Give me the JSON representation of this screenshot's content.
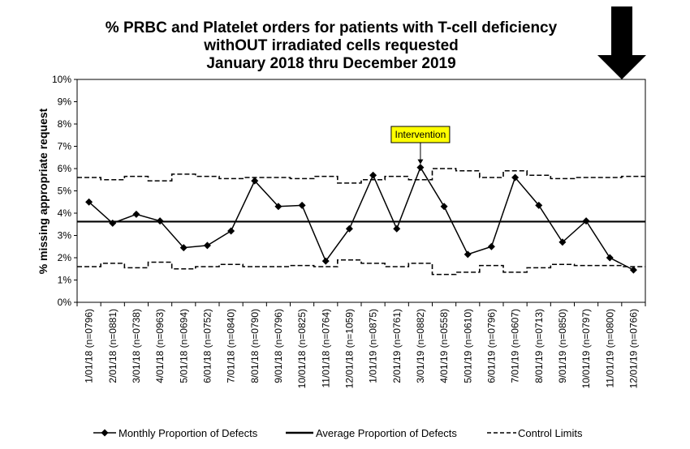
{
  "chart_data": {
    "type": "line",
    "title": [
      "% PRBC and Platelet orders for patients with T-cell deficiency",
      "withOUT irradiated cells requested",
      "January 2018 thru December 2019"
    ],
    "ylabel": "% missing appropriate request",
    "ylim": [
      0,
      10
    ],
    "yticks": [
      "0%",
      "1%",
      "2%",
      "3%",
      "4%",
      "5%",
      "6%",
      "7%",
      "8%",
      "9%",
      "10%"
    ],
    "categories": [
      "1/01/18 (n=0796)",
      "2/01/18 (n=0881)",
      "3/01/18 (n=0738)",
      "4/01/18 (n=0963)",
      "5/01/18 (n=0694)",
      "6/01/18 (n=0752)",
      "7/01/18 (n=0840)",
      "8/01/18 (n=0790)",
      "9/01/18 (n=0796)",
      "10/01/18 (n=0825)",
      "11/01/18 (n=0764)",
      "12/01/18 (n=1059)",
      "1/01/19 (n=0875)",
      "2/01/19 (n=0761)",
      "3/01/19 (n=0882)",
      "4/01/19 (n=0558)",
      "5/01/19 (n=0610)",
      "6/01/19 (n=0796)",
      "7/01/19 (n=0607)",
      "8/01/19 (n=0713)",
      "9/01/19 (n=0850)",
      "10/01/19 (n=0797)",
      "11/01/19 (n=0800)",
      "12/01/19 (n=0766)"
    ],
    "series": [
      {
        "name": "Monthly Proportion of Defects",
        "style": "line-diamond",
        "color": "#000000",
        "values": [
          4.5,
          3.55,
          3.95,
          3.65,
          2.45,
          2.55,
          3.2,
          5.45,
          4.3,
          4.35,
          1.85,
          3.3,
          5.7,
          3.3,
          6.05,
          4.3,
          2.15,
          2.5,
          5.6,
          4.35,
          2.7,
          3.65,
          2.0,
          1.45
        ]
      },
      {
        "name": "Average Proportion of Defects",
        "style": "solid-thick",
        "color": "#000000",
        "value": 3.62
      },
      {
        "name": "Control Limits",
        "style": "dashed-step",
        "color": "#000000",
        "upper": [
          5.6,
          5.5,
          5.65,
          5.45,
          5.75,
          5.65,
          5.55,
          5.6,
          5.6,
          5.55,
          5.65,
          5.35,
          5.5,
          5.65,
          5.5,
          6.0,
          5.9,
          5.6,
          5.9,
          5.7,
          5.55,
          5.6,
          5.6,
          5.65
        ],
        "lower": [
          1.6,
          1.75,
          1.55,
          1.8,
          1.5,
          1.6,
          1.7,
          1.6,
          1.6,
          1.65,
          1.6,
          1.9,
          1.75,
          1.6,
          1.75,
          1.25,
          1.35,
          1.65,
          1.35,
          1.55,
          1.7,
          1.65,
          1.65,
          1.6
        ]
      }
    ],
    "annotations": [
      {
        "text": "Intervention",
        "at_index": 14,
        "background": "#ffff00"
      }
    ],
    "grid": false,
    "legend": "bottom"
  }
}
